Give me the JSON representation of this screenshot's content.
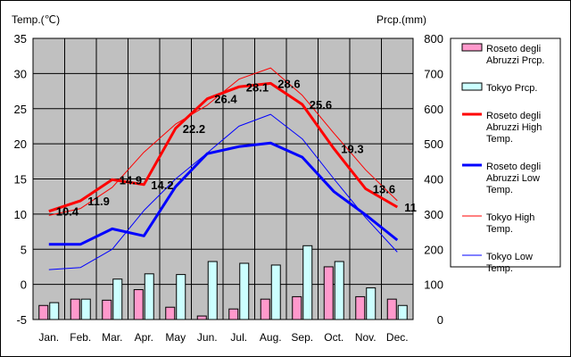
{
  "chart_data": {
    "type": "bar+line",
    "categories": [
      "Jan.",
      "Feb.",
      "Mar.",
      "Apr.",
      "May",
      "Jun.",
      "Jul.",
      "Aug.",
      "Sep.",
      "Oct.",
      "Nov.",
      "Dec."
    ],
    "y_left_label": "Temp.(℃)",
    "y_right_label": "Prcp.(mm)",
    "y_left_range": [
      -5,
      35
    ],
    "y_left_ticks": [
      35,
      30,
      25,
      20,
      15,
      10,
      5,
      0,
      -5
    ],
    "y_right_range": [
      0,
      800
    ],
    "y_right_ticks": [
      800,
      700,
      600,
      500,
      400,
      300,
      200,
      100,
      0
    ],
    "grid": true,
    "legend_position": "right",
    "bar_series": [
      {
        "name": "Roseto degli Abruzzi Prcp.",
        "color": "#ff99cc",
        "values": [
          40,
          58,
          55,
          85,
          35,
          10,
          30,
          58,
          65,
          150,
          65,
          58
        ]
      },
      {
        "name": "Tokyo Prcp.",
        "color": "#ccffff",
        "values": [
          48,
          58,
          115,
          130,
          128,
          165,
          160,
          155,
          210,
          165,
          90,
          40
        ]
      }
    ],
    "line_series": [
      {
        "name": "Roseto degli Abruzzi High Temp.",
        "color": "#ff0000",
        "width": 3,
        "values": [
          10.4,
          11.9,
          14.9,
          14.2,
          22.2,
          26.4,
          28.1,
          28.6,
          25.6,
          19.3,
          13.6,
          11.0
        ],
        "labels": [
          "10.4",
          "11.9",
          "14.9",
          "14.2",
          "22.2",
          "26.4",
          "28.1",
          "28.6",
          "25.6",
          "19.3",
          "13.6",
          "11"
        ]
      },
      {
        "name": "Roseto degli Abruzzi Low Temp.",
        "color": "#0000ff",
        "width": 3,
        "values": [
          5.7,
          5.7,
          7.9,
          6.9,
          13.9,
          18.6,
          19.6,
          20.1,
          18.1,
          13.2,
          9.9,
          6.3
        ]
      },
      {
        "name": "Tokyo High Temp.",
        "color": "#ff0000",
        "width": 1,
        "values": [
          9.8,
          10.8,
          13.8,
          18.8,
          22.8,
          25.5,
          29.2,
          30.8,
          26.9,
          21.5,
          16.3,
          11.9
        ]
      },
      {
        "name": "Tokyo Low Temp.",
        "color": "#0000ff",
        "width": 1,
        "values": [
          2.1,
          2.4,
          5.0,
          10.5,
          15.0,
          18.7,
          22.5,
          24.2,
          20.7,
          15.0,
          9.5,
          4.6
        ]
      }
    ],
    "legend": [
      {
        "kind": "bar",
        "color": "#ff99cc",
        "lines": [
          "Roseto degli",
          "Abruzzi Prcp."
        ]
      },
      {
        "kind": "bar",
        "color": "#ccffff",
        "lines": [
          "Tokyo Prcp."
        ]
      },
      {
        "kind": "line",
        "color": "#ff0000",
        "width": 3,
        "lines": [
          "Roseto degli",
          "Abruzzi High",
          "Temp."
        ]
      },
      {
        "kind": "line",
        "color": "#0000ff",
        "width": 3,
        "lines": [
          "Roseto degli",
          "Abruzzi Low",
          "Temp."
        ]
      },
      {
        "kind": "line",
        "color": "#ff0000",
        "width": 1,
        "lines": [
          "Tokyo High",
          "Temp."
        ]
      },
      {
        "kind": "line",
        "color": "#0000ff",
        "width": 1,
        "lines": [
          "Tokyo Low",
          "Temp."
        ]
      }
    ]
  }
}
